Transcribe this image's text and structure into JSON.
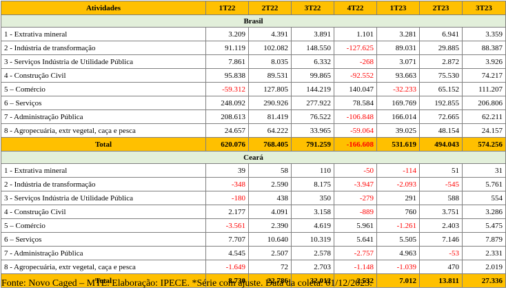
{
  "header": {
    "first_col": "Atividades",
    "periods": [
      "1T22",
      "2T22",
      "3T22",
      "4T22",
      "1T23",
      "2T23",
      "3T23"
    ]
  },
  "sections": [
    {
      "title": "Brasil",
      "rows": [
        {
          "label": "1 - Extrativa mineral",
          "values": [
            "3.209",
            "4.391",
            "3.891",
            "1.101",
            "3.281",
            "6.941",
            "3.359"
          ]
        },
        {
          "label": "2 - Indústria de transformação",
          "values": [
            "91.119",
            "102.082",
            "148.550",
            "-127.625",
            "89.031",
            "29.885",
            "88.387"
          ]
        },
        {
          "label": "3 - Serviços Indústria de Utilidade Pública",
          "values": [
            "7.861",
            "8.035",
            "6.332",
            "-268",
            "3.071",
            "2.872",
            "3.926"
          ]
        },
        {
          "label": "4 - Construção Civil",
          "values": [
            "95.838",
            "89.531",
            "99.865",
            "-92.552",
            "93.663",
            "75.530",
            "74.217"
          ]
        },
        {
          "label": "5 – Comércio",
          "values": [
            "-59.312",
            "127.805",
            "144.219",
            "140.047",
            "-32.233",
            "65.152",
            "111.207"
          ]
        },
        {
          "label": "6 – Serviços",
          "values": [
            "248.092",
            "290.926",
            "277.922",
            "78.584",
            "169.769",
            "192.855",
            "206.806"
          ]
        },
        {
          "label": "7 - Administração Pública",
          "values": [
            "208.613",
            "81.419",
            "76.522",
            "-106.848",
            "166.014",
            "72.665",
            "62.211"
          ]
        },
        {
          "label": "8 - Agropecuária, extr vegetal, caça e pesca",
          "values": [
            "24.657",
            "64.222",
            "33.965",
            "-59.064",
            "39.025",
            "48.154",
            "24.157"
          ]
        }
      ],
      "total": {
        "label": "Total",
        "values": [
          "620.076",
          "768.405",
          "791.259",
          "-166.608",
          "531.619",
          "494.043",
          "574.256"
        ]
      }
    },
    {
      "title": "Ceará",
      "rows": [
        {
          "label": "1 - Extrativa mineral",
          "values": [
            "39",
            "58",
            "110",
            "-50",
            "-114",
            "51",
            "31"
          ]
        },
        {
          "label": "2 - Indústria de transformação",
          "values": [
            "-348",
            "2.590",
            "8.175",
            "-3.947",
            "-2.093",
            "-545",
            "5.761"
          ]
        },
        {
          "label": "3 - Serviços Indústria de Utilidade Pública",
          "values": [
            "-180",
            "438",
            "350",
            "-279",
            "291",
            "588",
            "554"
          ]
        },
        {
          "label": "4 - Construção Civil",
          "values": [
            "2.177",
            "4.091",
            "3.158",
            "-889",
            "760",
            "3.751",
            "3.286"
          ]
        },
        {
          "label": "5 – Comércio",
          "values": [
            "-3.561",
            "2.390",
            "4.619",
            "5.961",
            "-1.261",
            "2.403",
            "5.475"
          ]
        },
        {
          "label": "6 – Serviços",
          "values": [
            "7.707",
            "10.640",
            "10.319",
            "5.641",
            "5.505",
            "7.146",
            "7.879"
          ]
        },
        {
          "label": "7 - Administração Pública",
          "values": [
            "4.545",
            "2.507",
            "2.578",
            "-2.757",
            "4.963",
            "-53",
            "2.331"
          ]
        },
        {
          "label": "8 - Agropecuária, extr vegetal, caça e pesca",
          "values": [
            "-1.649",
            "72",
            "2.703",
            "-1.148",
            "-1.039",
            "470",
            "2.019"
          ]
        }
      ],
      "total": {
        "label": "Total",
        "values": [
          "8.730",
          "22.786",
          "32.012",
          "2.532",
          "7.012",
          "13.811",
          "27.336"
        ]
      }
    }
  ],
  "footer": "Fonte: Novo Caged – MTE. Elaboração: IPECE. *Série com ajuste. Data da coleta: 01/12/2023.",
  "colors": {
    "header_bg": "#ffc000",
    "section_bg": "#e2efda",
    "negative": "#ff0000",
    "border": "#7f7f7f"
  }
}
